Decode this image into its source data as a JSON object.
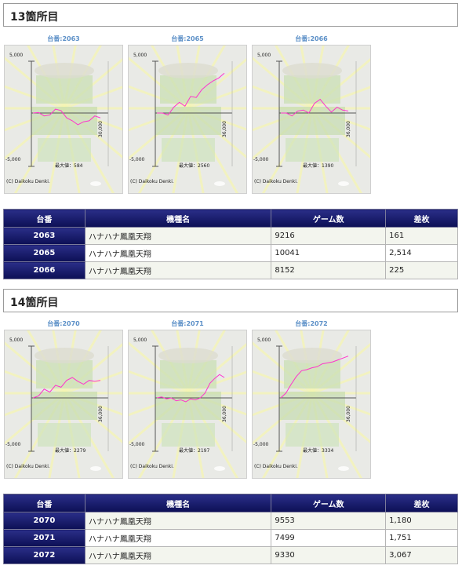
{
  "sections": [
    {
      "title": "13箇所目",
      "graphs": [
        {
          "caption": "台番:2063",
          "y_top": "5,000",
          "y_bottom": "-5,000",
          "x_label": "30,000",
          "max_label": "最大値：584",
          "copyright": "(C) Daikoku Denki.",
          "line": [
            0,
            1,
            -6,
            -4,
            8,
            5,
            -10,
            -16,
            -24,
            -18,
            -16,
            -6,
            -10
          ]
        },
        {
          "caption": "台番:2065",
          "y_top": "5,000",
          "y_bottom": "-5,000",
          "x_label": "36,000",
          "max_label": "最大値：2560",
          "copyright": "(C) Daikoku Denki.",
          "line": [
            0,
            0,
            -4,
            12,
            22,
            14,
            34,
            32,
            48,
            58,
            66,
            72,
            82
          ]
        },
        {
          "caption": "台番:2066",
          "y_top": "5,000",
          "y_bottom": "-5,000",
          "x_label": "36,000",
          "max_label": "最大値：1390",
          "copyright": "(C) Daikoku Denki.",
          "line": [
            0,
            0,
            -6,
            4,
            6,
            0,
            20,
            28,
            14,
            2,
            12,
            6,
            4
          ]
        }
      ],
      "table": {
        "headers": [
          "台番",
          "機種名",
          "ゲーム数",
          "差枚"
        ],
        "rows": [
          {
            "id": "2063",
            "name": "ハナハナ鳳凰天翔",
            "games": "9216",
            "diff": "161"
          },
          {
            "id": "2065",
            "name": "ハナハナ鳳凰天翔",
            "games": "10041",
            "diff": "2,514"
          },
          {
            "id": "2066",
            "name": "ハナハナ鳳凰天翔",
            "games": "8152",
            "diff": "225"
          }
        ]
      }
    },
    {
      "title": "14箇所目",
      "graphs": [
        {
          "caption": "台番:2070",
          "y_top": "5,000",
          "y_bottom": "-5,000",
          "x_label": "36,000",
          "max_label": "最大値：2279",
          "copyright": "(C) Daikoku Denki.",
          "line": [
            0,
            4,
            18,
            12,
            26,
            22,
            36,
            42,
            34,
            28,
            36,
            34,
            36
          ]
        },
        {
          "caption": "台番:2071",
          "y_top": "5,000",
          "y_bottom": "-5,000",
          "x_label": "36,000",
          "max_label": "最大値：2197",
          "copyright": "(C) Daikoku Denki.",
          "line": [
            0,
            2,
            -2,
            0,
            -6,
            -4,
            -8,
            -2,
            -4,
            0,
            10,
            30,
            40,
            48,
            42
          ]
        },
        {
          "caption": "台番:2072",
          "y_top": "5,000",
          "y_bottom": "-5,000",
          "x_label": "36,000",
          "max_label": "最大値：3334",
          "copyright": "(C) Daikoku Denki.",
          "line": [
            0,
            10,
            28,
            44,
            56,
            58,
            62,
            64,
            70,
            72,
            74,
            78,
            82,
            86
          ]
        }
      ],
      "table": {
        "headers": [
          "台番",
          "機種名",
          "ゲーム数",
          "差枚"
        ],
        "rows": [
          {
            "id": "2070",
            "name": "ハナハナ鳳凰天翔",
            "games": "9553",
            "diff": "1,180"
          },
          {
            "id": "2071",
            "name": "ハナハナ鳳凰天翔",
            "games": "7499",
            "diff": "1,751"
          },
          {
            "id": "2072",
            "name": "ハナハナ鳳凰天翔",
            "games": "9330",
            "diff": "3,067"
          }
        ]
      }
    }
  ],
  "colors": {
    "line": "#ff33cc",
    "header_bg": "#141870",
    "caption": "#5b8fc7"
  }
}
